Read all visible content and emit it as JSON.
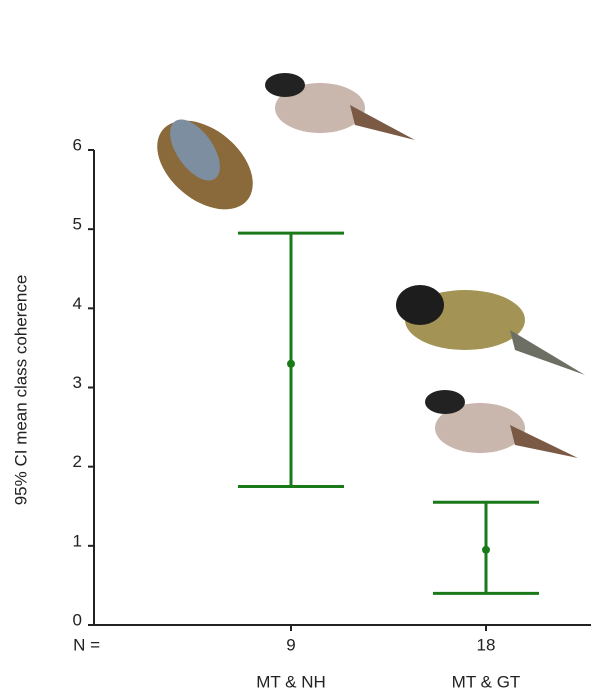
{
  "chart_data": {
    "type": "errorbar",
    "y_label": "95% CI mean class coherence",
    "categories": [
      "MT & NH",
      "MT & GT"
    ],
    "n_label": "N =",
    "n": [
      9,
      18
    ],
    "values": [
      3.3,
      0.95
    ],
    "lower": [
      1.75,
      0.4
    ],
    "upper": [
      4.95,
      1.55
    ],
    "color": "#1a7a1a",
    "ylim": [
      0,
      6
    ],
    "yticks": [
      0,
      1,
      2,
      3,
      4,
      5,
      6
    ]
  }
}
